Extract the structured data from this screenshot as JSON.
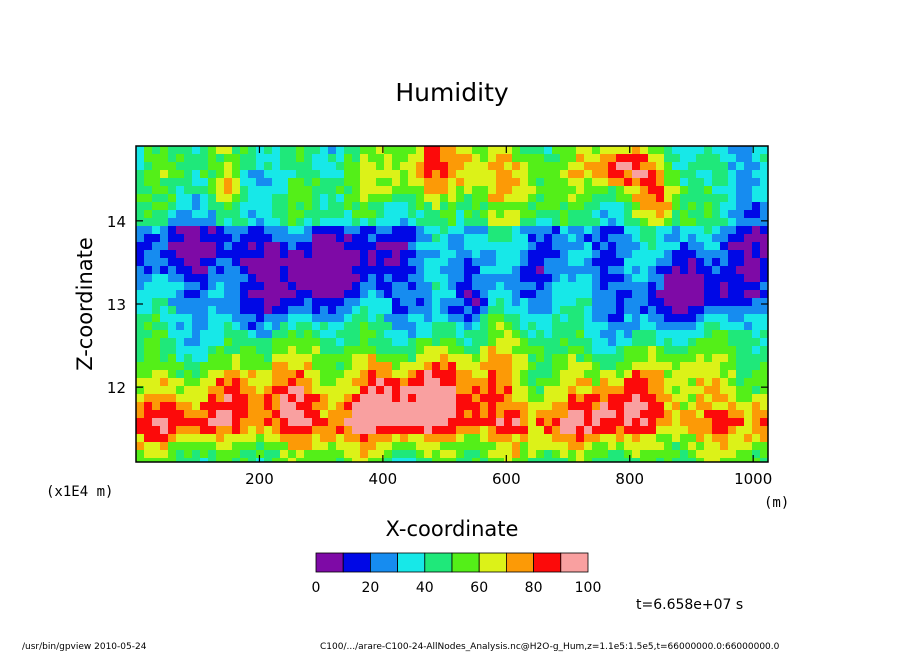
{
  "chart_data": {
    "type": "heatmap",
    "title": "Humidity",
    "xlabel": "X-coordinate",
    "ylabel": "Z-coordinate",
    "x_units": "(m)",
    "y_scale_label": "(x1E4 m)",
    "x_ticks": [
      200,
      400,
      600,
      800,
      1000
    ],
    "y_ticks": [
      12,
      13,
      14
    ],
    "xlim": [
      0,
      1024
    ],
    "ylim": [
      11.1,
      14.9
    ],
    "colorbar": {
      "levels": [
        0,
        10,
        20,
        30,
        40,
        50,
        60,
        70,
        80,
        90,
        100
      ],
      "tick_labels": [
        "0",
        "20",
        "40",
        "60",
        "80",
        "100"
      ],
      "colors": [
        "#7e0aa6",
        "#0008e6",
        "#168cf0",
        "#17e8e8",
        "#1fe87a",
        "#54ef18",
        "#dcf218",
        "#fc9a06",
        "#fc0a0a",
        "#f9a0a0"
      ]
    },
    "time_label": "t=6.658e+07 s",
    "regions": [
      {
        "desc": "dry core (upper-left middle)",
        "x": 320,
        "z": 13.4,
        "value": 10
      },
      {
        "desc": "moist peak",
        "x": 470,
        "z": 11.8,
        "value": 95
      },
      {
        "desc": "moist peak",
        "x": 790,
        "z": 11.8,
        "value": 90
      },
      {
        "desc": "moist top band",
        "x": 470,
        "z": 14.7,
        "value": 95
      },
      {
        "desc": "moist top band",
        "x": 830,
        "z": 14.5,
        "value": 90
      }
    ]
  },
  "footer": {
    "left": "/usr/bin/gpview  2010-05-24",
    "right": "C100/.../arare-C100-24-AllNodes_Analysis.nc@H2O-g_Hum,z=1.1e5:1.5e5,t=66000000.0:66000000.0"
  }
}
